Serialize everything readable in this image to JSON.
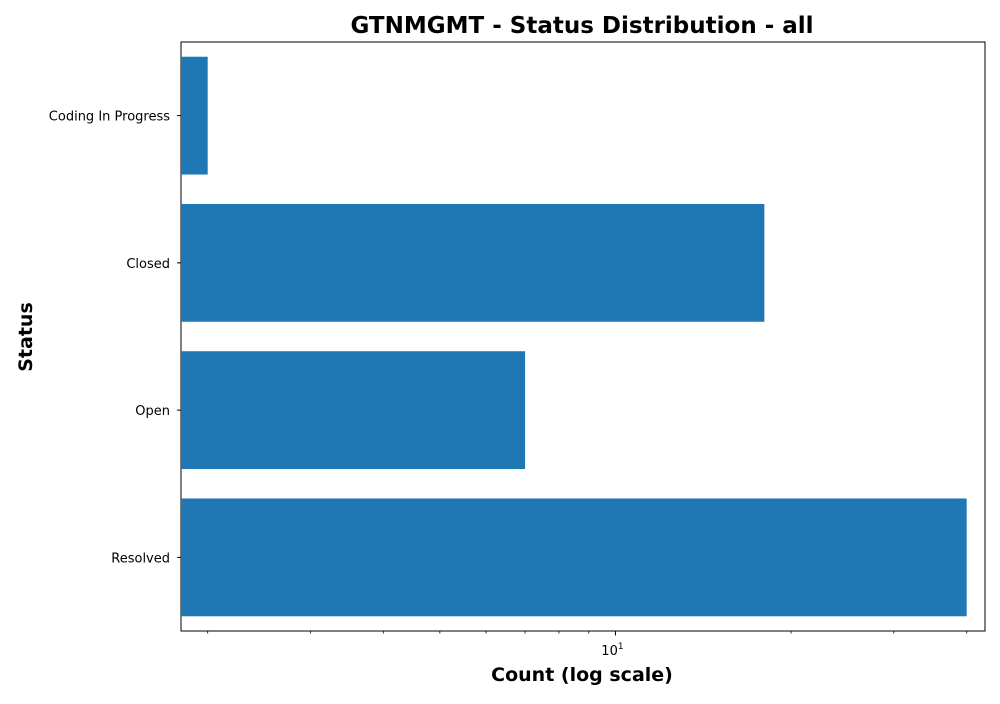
{
  "chart_data": {
    "type": "bar",
    "orientation": "horizontal",
    "title": "GTNMGMT - Status Distribution - all",
    "xlabel": "Count (log scale)",
    "ylabel": "Status",
    "x_scale": "log",
    "xlim": [
      1.8,
      43
    ],
    "categories": [
      "Coding In Progress",
      "Closed",
      "Open",
      "Resolved"
    ],
    "values": [
      2,
      18,
      7,
      40
    ],
    "x_major_ticks": [
      10
    ],
    "x_major_tick_labels": [
      {
        "base": "10",
        "exponent": "1"
      }
    ],
    "x_minor_ticks": [
      2,
      3,
      4,
      5,
      6,
      7,
      8,
      9,
      20,
      30,
      40
    ],
    "bar_color": "#1f77b4",
    "grid": false,
    "legend": "none"
  }
}
